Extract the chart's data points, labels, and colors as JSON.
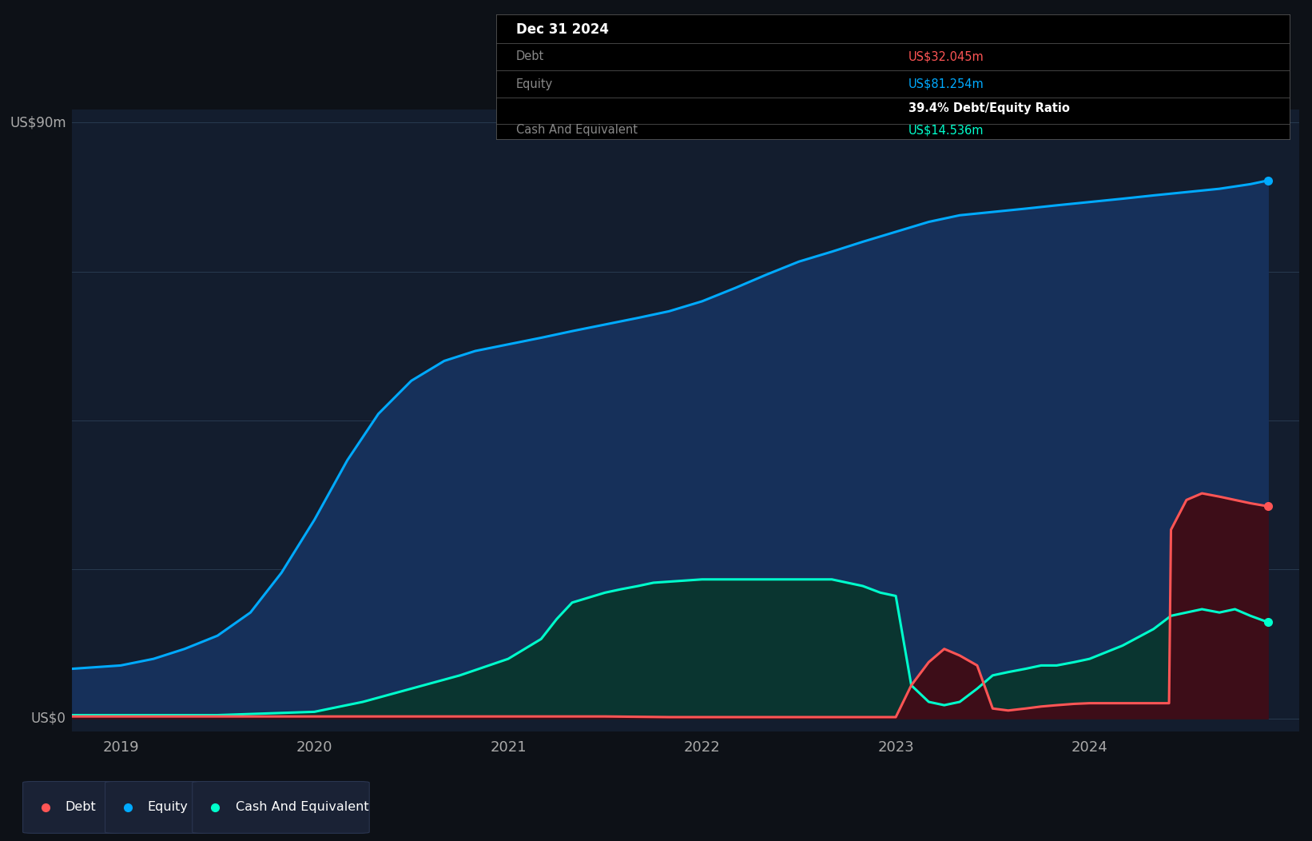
{
  "bg_color": "#0d1117",
  "plot_bg_color": "#131d2e",
  "ylabel_top": "US$90m",
  "ylabel_zero": "US$0",
  "x_ticks": [
    2019,
    2020,
    2021,
    2022,
    2023,
    2024
  ],
  "ylim_min": -2,
  "ylim_max": 92,
  "equity_color": "#00aaff",
  "debt_color": "#ff5555",
  "cash_color": "#00ffcc",
  "equity_fill": "#16305a",
  "debt_fill": "#3d0d18",
  "cash_fill": "#0a3530",
  "equity_data_x": [
    2018.75,
    2019.0,
    2019.17,
    2019.33,
    2019.5,
    2019.67,
    2019.83,
    2020.0,
    2020.17,
    2020.33,
    2020.5,
    2020.67,
    2020.83,
    2021.0,
    2021.17,
    2021.33,
    2021.5,
    2021.67,
    2021.83,
    2022.0,
    2022.17,
    2022.33,
    2022.5,
    2022.67,
    2022.83,
    2023.0,
    2023.17,
    2023.33,
    2023.5,
    2023.67,
    2023.83,
    2024.0,
    2024.17,
    2024.33,
    2024.5,
    2024.67,
    2024.83,
    2024.92
  ],
  "equity_data_y": [
    7.5,
    8.0,
    9.0,
    10.5,
    12.5,
    16.0,
    22.0,
    30.0,
    39.0,
    46.0,
    51.0,
    54.0,
    55.5,
    56.5,
    57.5,
    58.5,
    59.5,
    60.5,
    61.5,
    63.0,
    65.0,
    67.0,
    69.0,
    70.5,
    72.0,
    73.5,
    75.0,
    76.0,
    76.5,
    77.0,
    77.5,
    78.0,
    78.5,
    79.0,
    79.5,
    80.0,
    80.7,
    81.254
  ],
  "debt_data_x": [
    2018.75,
    2019.0,
    2019.5,
    2020.0,
    2020.5,
    2021.0,
    2021.5,
    2021.83,
    2022.0,
    2022.5,
    2022.83,
    2022.92,
    2023.0,
    2023.08,
    2023.17,
    2023.25,
    2023.33,
    2023.42,
    2023.5,
    2023.58,
    2023.67,
    2023.75,
    2023.83,
    2023.92,
    2024.0,
    2024.08,
    2024.17,
    2024.25,
    2024.33,
    2024.41,
    2024.42,
    2024.5,
    2024.58,
    2024.67,
    2024.75,
    2024.83,
    2024.92
  ],
  "debt_data_y": [
    0.3,
    0.3,
    0.3,
    0.3,
    0.3,
    0.3,
    0.3,
    0.2,
    0.2,
    0.2,
    0.2,
    0.2,
    0.2,
    5.0,
    8.5,
    10.5,
    9.5,
    8.0,
    1.5,
    1.2,
    1.5,
    1.8,
    2.0,
    2.2,
    2.3,
    2.3,
    2.3,
    2.3,
    2.3,
    2.3,
    28.5,
    33.0,
    34.0,
    33.5,
    33.0,
    32.5,
    32.045
  ],
  "cash_data_x": [
    2018.75,
    2019.0,
    2019.5,
    2020.0,
    2020.25,
    2020.5,
    2020.75,
    2021.0,
    2021.17,
    2021.25,
    2021.33,
    2021.5,
    2021.58,
    2021.67,
    2021.75,
    2022.0,
    2022.25,
    2022.5,
    2022.67,
    2022.75,
    2022.83,
    2022.92,
    2023.0,
    2023.08,
    2023.17,
    2023.25,
    2023.33,
    2023.42,
    2023.5,
    2023.58,
    2023.67,
    2023.75,
    2023.83,
    2023.92,
    2024.0,
    2024.17,
    2024.33,
    2024.42,
    2024.5,
    2024.58,
    2024.67,
    2024.75,
    2024.83,
    2024.92
  ],
  "cash_data_y": [
    0.5,
    0.5,
    0.5,
    1.0,
    2.5,
    4.5,
    6.5,
    9.0,
    12.0,
    15.0,
    17.5,
    19.0,
    19.5,
    20.0,
    20.5,
    21.0,
    21.0,
    21.0,
    21.0,
    20.5,
    20.0,
    19.0,
    18.5,
    5.0,
    2.5,
    2.0,
    2.5,
    4.5,
    6.5,
    7.0,
    7.5,
    8.0,
    8.0,
    8.5,
    9.0,
    11.0,
    13.5,
    15.5,
    16.0,
    16.5,
    16.0,
    16.5,
    15.5,
    14.536
  ],
  "tooltip_date": "Dec 31 2024",
  "tooltip_debt_label": "Debt",
  "tooltip_debt_value": "US$32.045m",
  "tooltip_equity_label": "Equity",
  "tooltip_equity_value": "US$81.254m",
  "tooltip_ratio": "39.4% Debt/Equity Ratio",
  "tooltip_cash_label": "Cash And Equivalent",
  "tooltip_cash_value": "US$14.536m",
  "legend_items": [
    {
      "label": "Debt",
      "color": "#ff5555"
    },
    {
      "label": "Equity",
      "color": "#00aaff"
    },
    {
      "label": "Cash And Equivalent",
      "color": "#00ffcc"
    }
  ],
  "grid_color": "#283a50",
  "tick_color": "#aaaaaa",
  "dot_size": 7
}
